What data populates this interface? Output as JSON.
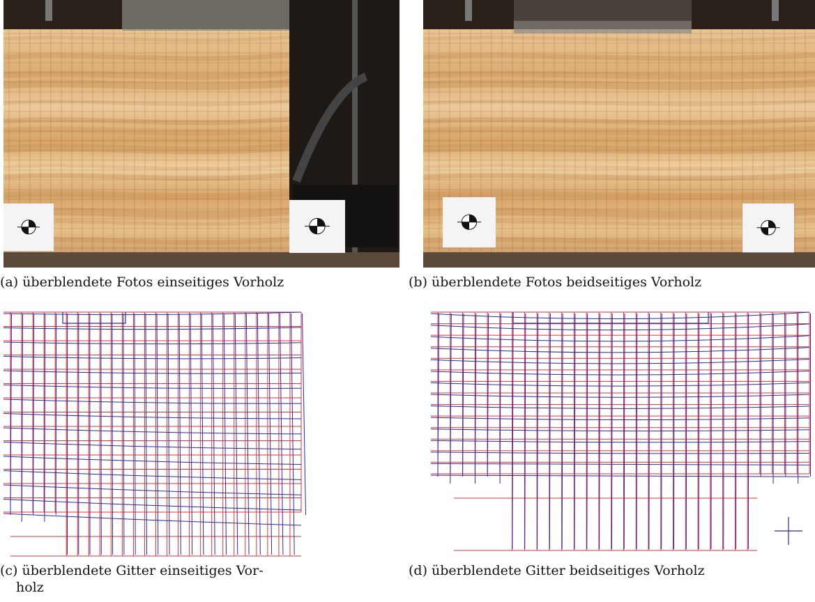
{
  "figure": {
    "panels": [
      {
        "id": "a",
        "caption": "(a) überblendete Fotos einseitiges Vorholz",
        "kind": "photo",
        "notches": "one side"
      },
      {
        "id": "b",
        "caption": "(b) überblendete Fotos beidseitiges Vorholz",
        "kind": "photo",
        "notches": "both sides"
      },
      {
        "id": "c",
        "caption_line1": "(c) überblendete Gitter einseitiges Vor-",
        "caption_line2": "holz",
        "kind": "grid"
      },
      {
        "id": "d",
        "caption": "(d) überblendete Gitter beidseitiges Vorholz",
        "kind": "grid"
      }
    ],
    "colors": {
      "wood_light": "#e8c08a",
      "wood_mid": "#d9a66a",
      "wood_dark": "#b97c45",
      "background_dark": "#2b211a",
      "grid_red": "#e0303a",
      "grid_blue": "#2a2a9a"
    }
  }
}
